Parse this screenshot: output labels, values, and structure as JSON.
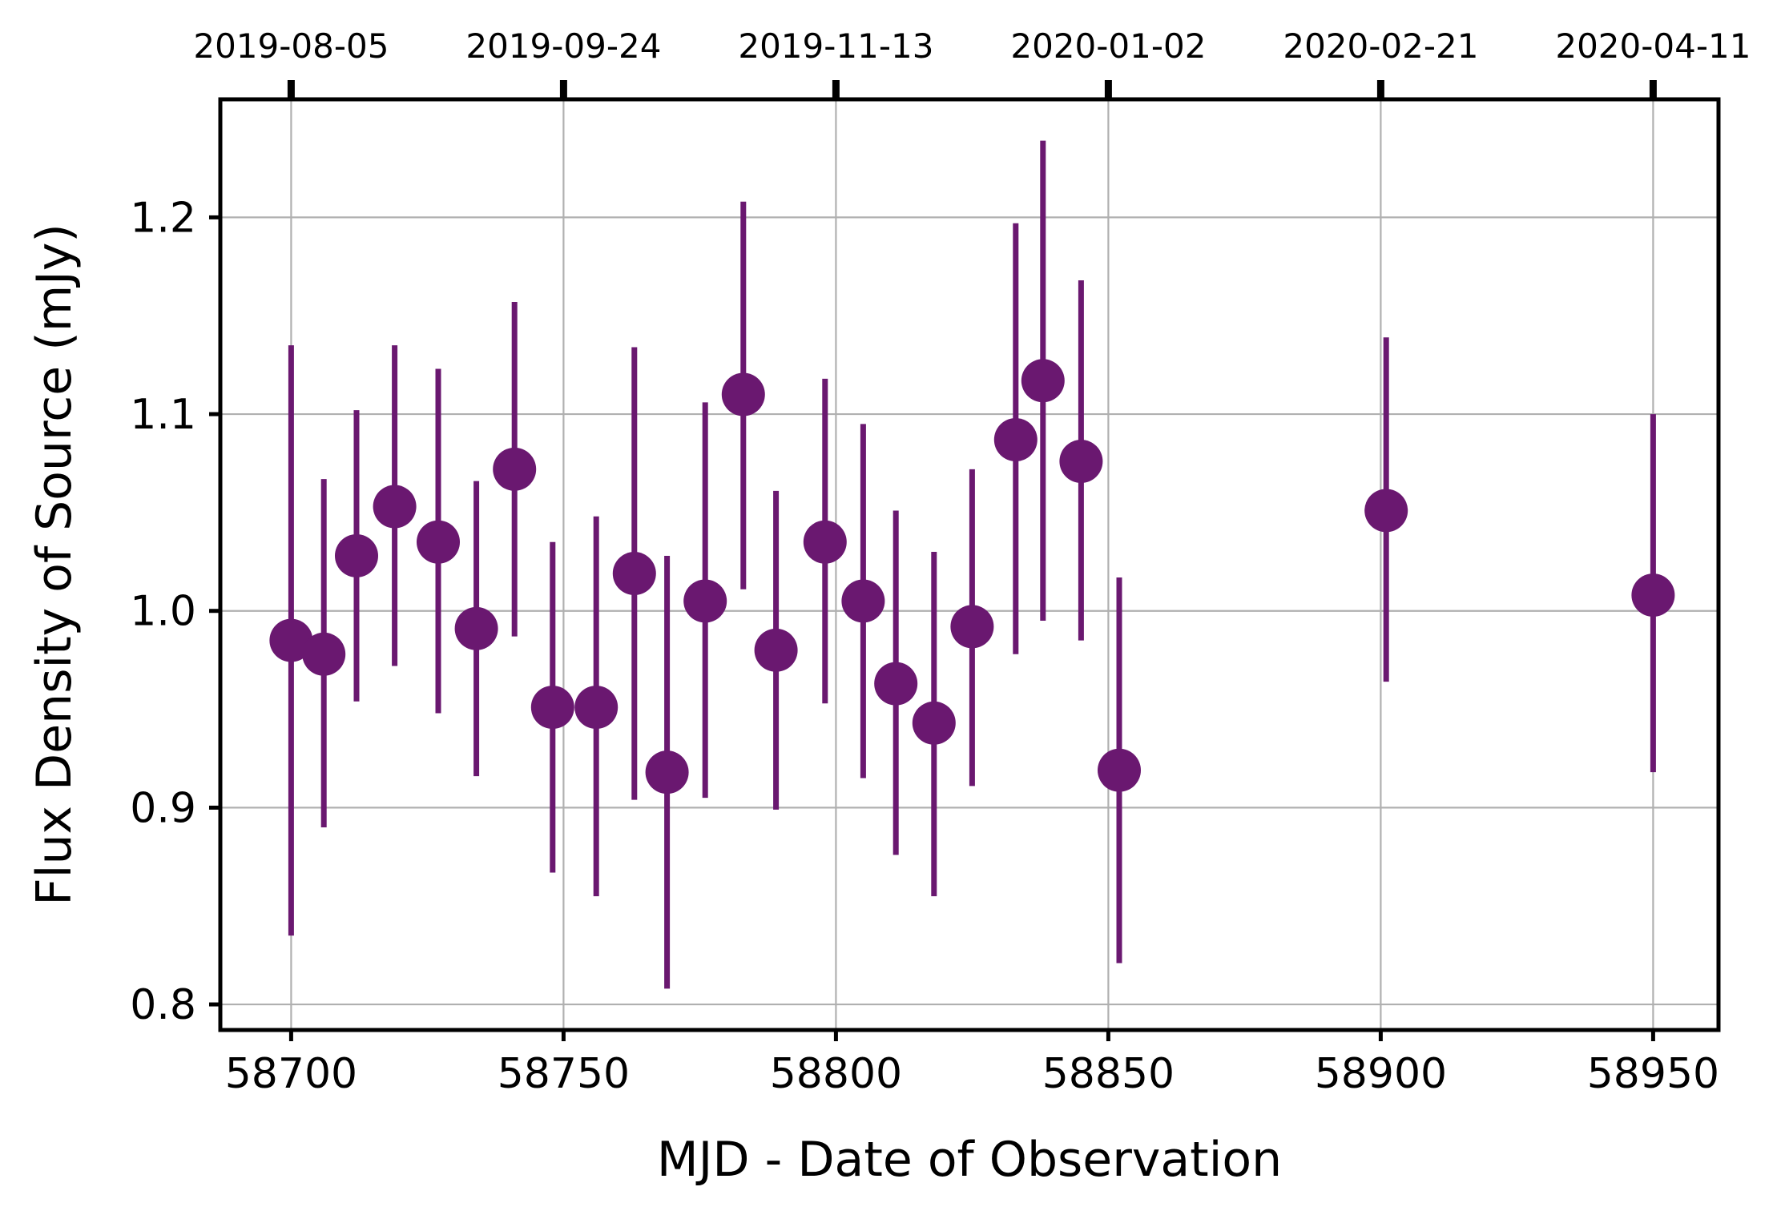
{
  "chart_data": {
    "type": "scatter",
    "title": "",
    "xlabel": "MJD - Date of Observation",
    "ylabel": "Flux Density of Source (mJy)",
    "xlim": [
      58687,
      58962
    ],
    "ylim": [
      0.787,
      1.26
    ],
    "grid": true,
    "x_ticks": [
      58700,
      58750,
      58800,
      58850,
      58900,
      58950
    ],
    "x_tick_labels": [
      "58700",
      "58750",
      "58800",
      "58850",
      "58900",
      "58950"
    ],
    "y_ticks": [
      0.8,
      0.9,
      1.0,
      1.1,
      1.2
    ],
    "y_tick_labels": [
      "0.8",
      "0.9",
      "1.0",
      "1.1",
      "1.2"
    ],
    "top_ticks": [
      58700,
      58750,
      58800,
      58850,
      58900,
      58950
    ],
    "top_tick_labels": [
      "2019-08-05",
      "2019-09-24",
      "2019-11-13",
      "2020-01-02",
      "2020-02-21",
      "2020-04-11"
    ],
    "color": "#6a1870",
    "series": [
      {
        "points": [
          {
            "x": 58700,
            "y": 0.985,
            "ylo": 0.835,
            "yhi": 1.135
          },
          {
            "x": 58706,
            "y": 0.978,
            "ylo": 0.89,
            "yhi": 1.067
          },
          {
            "x": 58712,
            "y": 1.028,
            "ylo": 0.954,
            "yhi": 1.102
          },
          {
            "x": 58719,
            "y": 1.053,
            "ylo": 0.972,
            "yhi": 1.135
          },
          {
            "x": 58727,
            "y": 1.035,
            "ylo": 0.948,
            "yhi": 1.123
          },
          {
            "x": 58734,
            "y": 0.991,
            "ylo": 0.916,
            "yhi": 1.066
          },
          {
            "x": 58741,
            "y": 1.072,
            "ylo": 0.987,
            "yhi": 1.157
          },
          {
            "x": 58748,
            "y": 0.951,
            "ylo": 0.867,
            "yhi": 1.035
          },
          {
            "x": 58756,
            "y": 0.951,
            "ylo": 0.855,
            "yhi": 1.048
          },
          {
            "x": 58763,
            "y": 1.019,
            "ylo": 0.904,
            "yhi": 1.134
          },
          {
            "x": 58769,
            "y": 0.918,
            "ylo": 0.808,
            "yhi": 1.028
          },
          {
            "x": 58776,
            "y": 1.005,
            "ylo": 0.905,
            "yhi": 1.106
          },
          {
            "x": 58783,
            "y": 1.11,
            "ylo": 1.011,
            "yhi": 1.208
          },
          {
            "x": 58789,
            "y": 0.98,
            "ylo": 0.899,
            "yhi": 1.061
          },
          {
            "x": 58798,
            "y": 1.035,
            "ylo": 0.953,
            "yhi": 1.118
          },
          {
            "x": 58805,
            "y": 1.005,
            "ylo": 0.915,
            "yhi": 1.095
          },
          {
            "x": 58811,
            "y": 0.963,
            "ylo": 0.876,
            "yhi": 1.051
          },
          {
            "x": 58818,
            "y": 0.943,
            "ylo": 0.855,
            "yhi": 1.03
          },
          {
            "x": 58825,
            "y": 0.992,
            "ylo": 0.911,
            "yhi": 1.072
          },
          {
            "x": 58833,
            "y": 1.087,
            "ylo": 0.978,
            "yhi": 1.197
          },
          {
            "x": 58838,
            "y": 1.117,
            "ylo": 0.995,
            "yhi": 1.239
          },
          {
            "x": 58845,
            "y": 1.076,
            "ylo": 0.985,
            "yhi": 1.168
          },
          {
            "x": 58852,
            "y": 0.919,
            "ylo": 0.821,
            "yhi": 1.017
          },
          {
            "x": 58901,
            "y": 1.051,
            "ylo": 0.964,
            "yhi": 1.139
          },
          {
            "x": 58950,
            "y": 1.008,
            "ylo": 0.918,
            "yhi": 1.1
          }
        ]
      }
    ]
  }
}
